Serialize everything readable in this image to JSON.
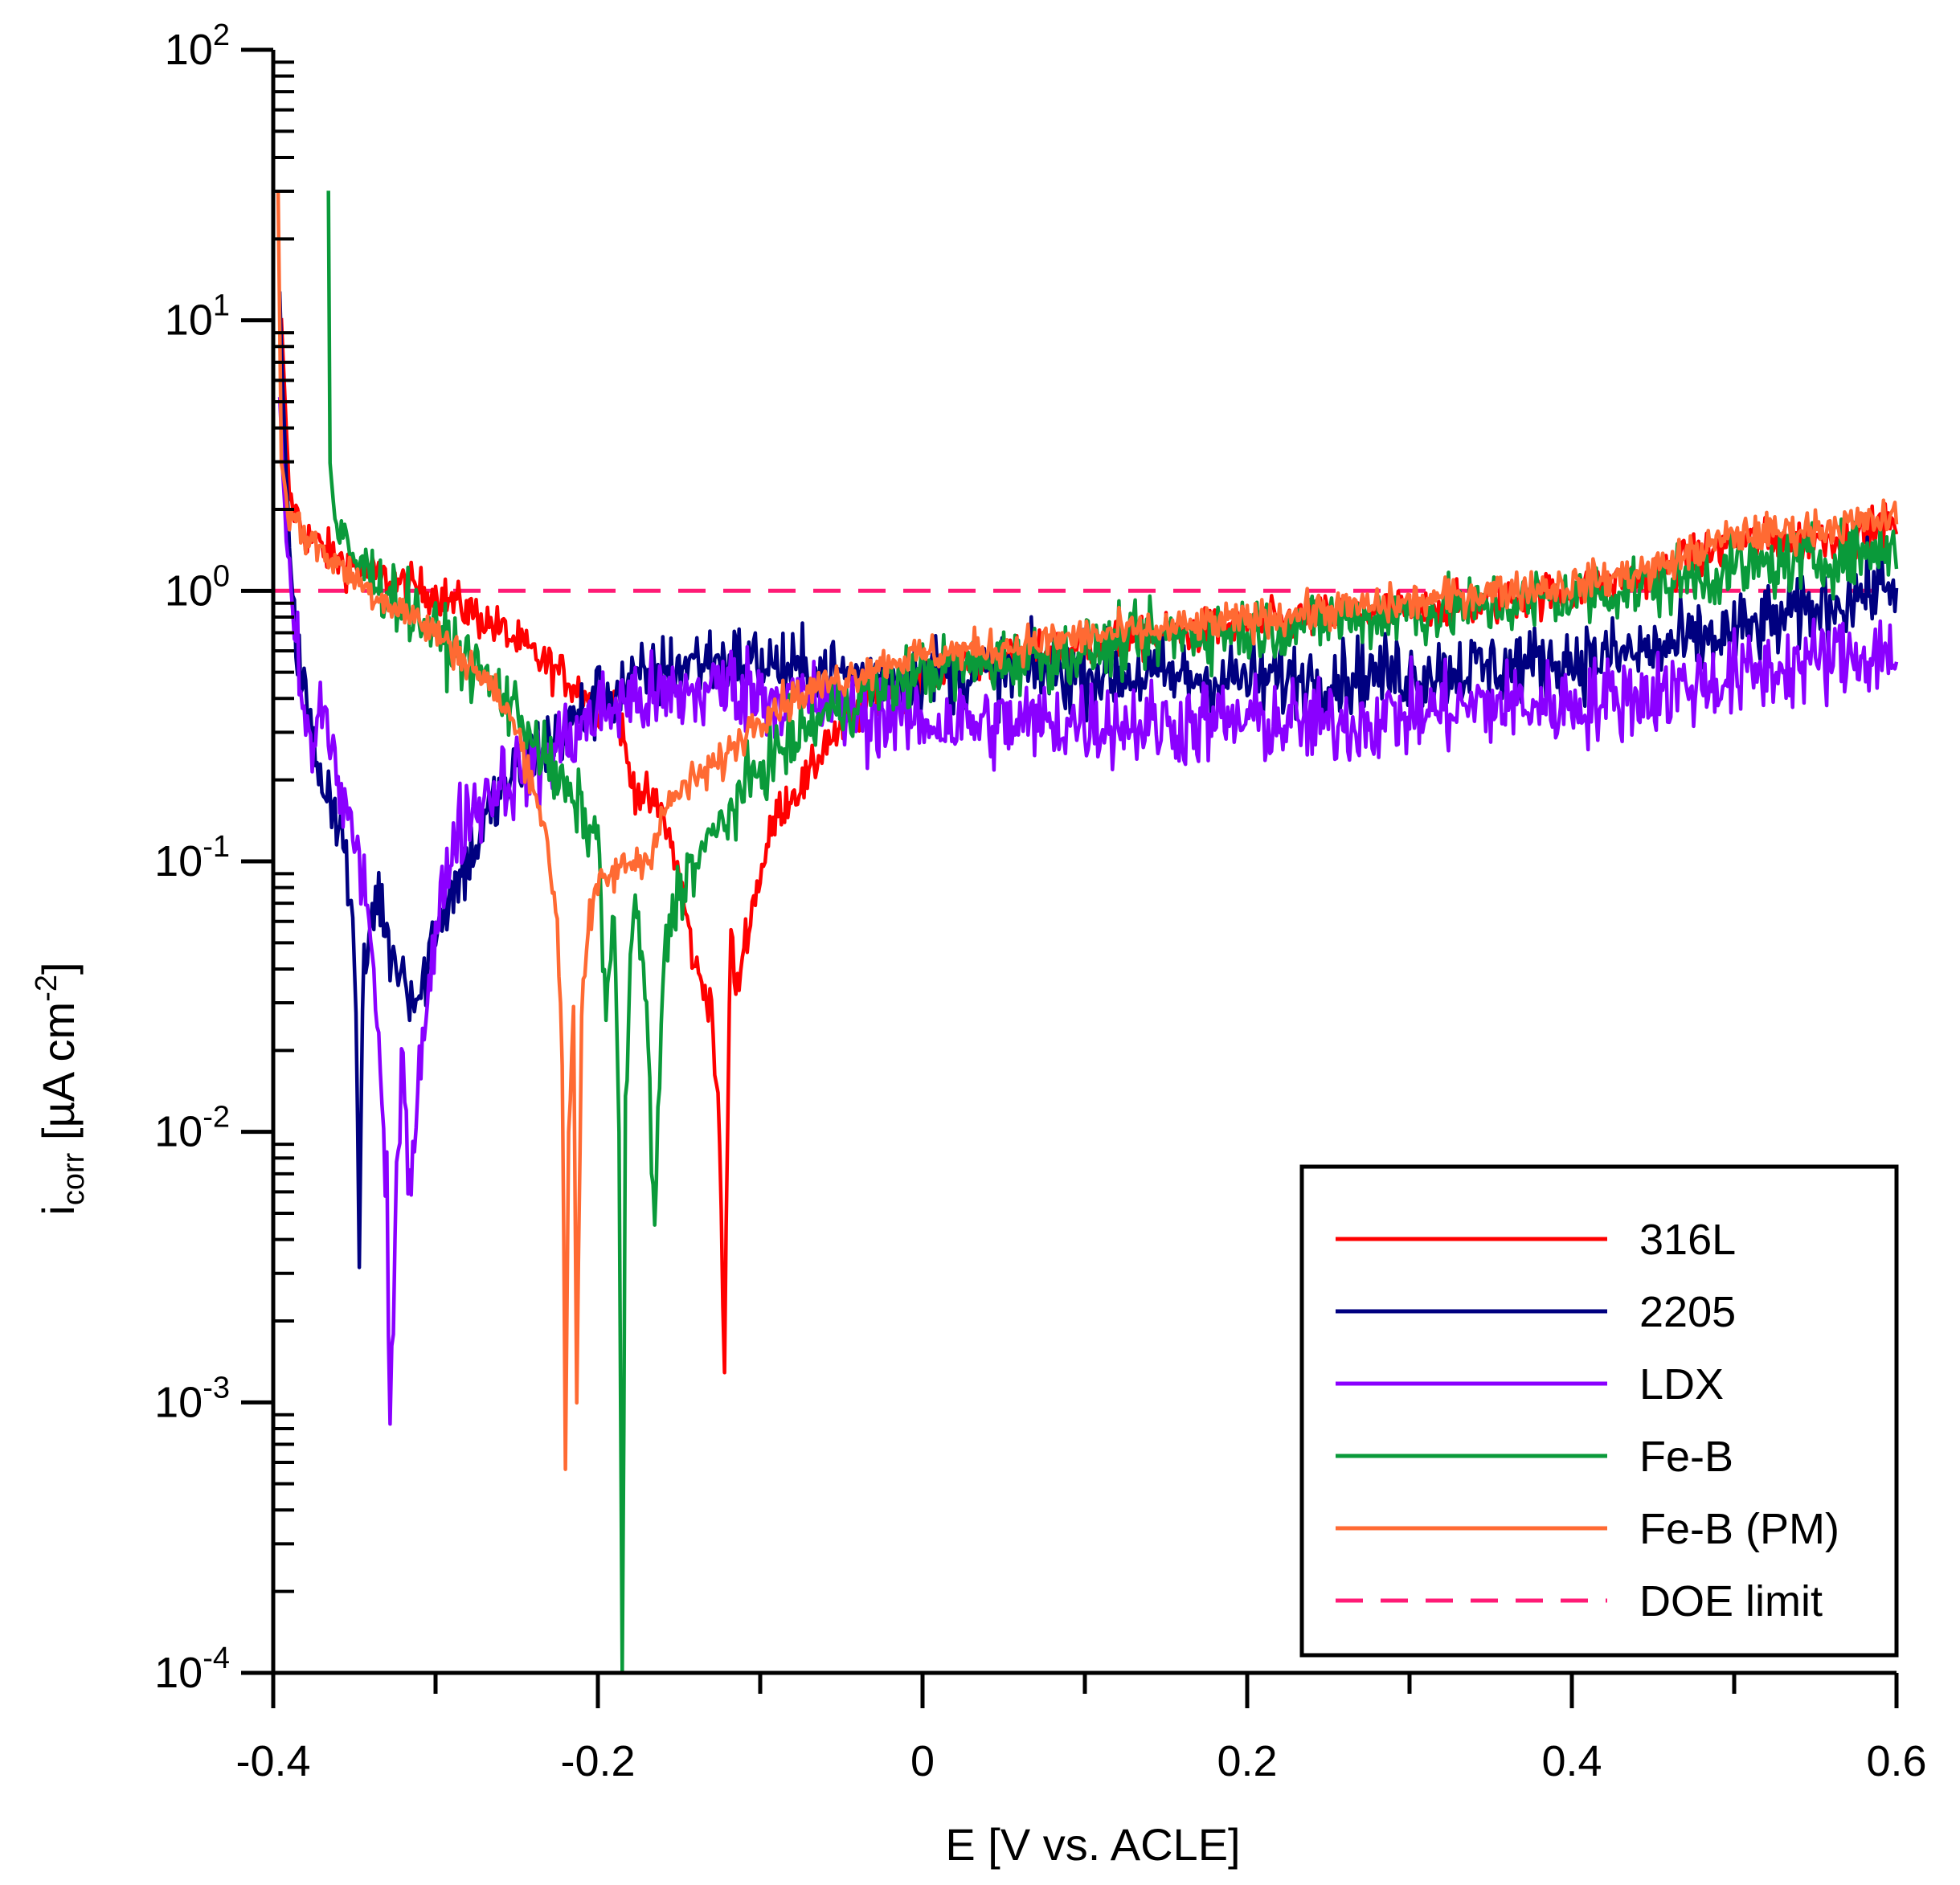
{
  "chart_data": {
    "type": "line",
    "title": "",
    "xlabel": "E [V vs. ACLE]",
    "ylabel": {
      "base": "i",
      "subscript": "corr",
      "unit_prefix": " [µA cm",
      "unit_superscript": "-2",
      "unit_suffix": "]"
    },
    "xlim": [
      -0.4,
      0.6
    ],
    "ylim": [
      0.0001,
      100
    ],
    "yscale": "log",
    "x_ticks": [
      {
        "value": -0.4,
        "label": "-0.4"
      },
      {
        "value": -0.2,
        "label": "-0.2"
      },
      {
        "value": 0,
        "label": "0"
      },
      {
        "value": 0.2,
        "label": "0.2"
      },
      {
        "value": 0.4,
        "label": "0.4"
      },
      {
        "value": 0.6,
        "label": "0.6"
      }
    ],
    "y_ticks": [
      {
        "value": 100,
        "base": "10",
        "exp": "2"
      },
      {
        "value": 10,
        "base": "10",
        "exp": "1"
      },
      {
        "value": 1,
        "base": "10",
        "exp": "0"
      },
      {
        "value": 0.1,
        "base": "10",
        "exp": "-1"
      },
      {
        "value": 0.01,
        "base": "10",
        "exp": "-2"
      },
      {
        "value": 0.001,
        "base": "10",
        "exp": "-3"
      },
      {
        "value": 0.0001,
        "base": "10",
        "exp": "-4"
      }
    ],
    "legend_position": "bottom-right",
    "series": [
      {
        "name": "316L",
        "color": "#ff0000",
        "noise": 0.08,
        "x": [
          -0.395,
          -0.39,
          -0.38,
          -0.36,
          -0.34,
          -0.32,
          -0.3,
          -0.28,
          -0.26,
          -0.24,
          -0.22,
          -0.2,
          -0.19,
          -0.185,
          -0.18,
          -0.17,
          -0.16,
          -0.15,
          -0.14,
          -0.13,
          -0.125,
          -0.122,
          -0.12,
          -0.118,
          -0.115,
          -0.11,
          -0.1,
          -0.09,
          -0.08,
          -0.07,
          -0.06,
          -0.05,
          -0.03,
          -0.01,
          0.0,
          0.05,
          0.1,
          0.15,
          0.2,
          0.25,
          0.3,
          0.35,
          0.4,
          0.45,
          0.5,
          0.55,
          0.6
        ],
        "y": [
          10,
          2.2,
          1.6,
          1.3,
          1.15,
          1.05,
          0.98,
          0.85,
          0.72,
          0.58,
          0.48,
          0.38,
          0.4,
          0.3,
          0.2,
          0.17,
          0.15,
          0.09,
          0.04,
          0.03,
          0.009,
          0.0013,
          0.012,
          0.06,
          0.03,
          0.05,
          0.09,
          0.15,
          0.18,
          0.2,
          0.28,
          0.3,
          0.4,
          0.45,
          0.5,
          0.55,
          0.62,
          0.68,
          0.75,
          0.8,
          0.85,
          0.9,
          1.0,
          1.15,
          1.5,
          1.55,
          1.75
        ]
      },
      {
        "name": "2205",
        "color": "#000080",
        "noise": 0.14,
        "x": [
          -0.396,
          -0.392,
          -0.385,
          -0.375,
          -0.36,
          -0.355,
          -0.35,
          -0.347,
          -0.345,
          -0.34,
          -0.335,
          -0.33,
          -0.32,
          -0.31,
          -0.3,
          -0.28,
          -0.26,
          -0.24,
          -0.22,
          -0.2,
          -0.18,
          -0.16,
          -0.14,
          -0.12,
          -0.1,
          -0.08,
          -0.06,
          -0.04,
          -0.02,
          0.0,
          0.05,
          0.1,
          0.15,
          0.2,
          0.25,
          0.3,
          0.35,
          0.4,
          0.45,
          0.5,
          0.55,
          0.6
        ],
        "y": [
          12,
          2.5,
          0.6,
          0.25,
          0.15,
          0.1,
          0.05,
          0.0035,
          0.03,
          0.06,
          0.08,
          0.05,
          0.04,
          0.03,
          0.06,
          0.1,
          0.18,
          0.25,
          0.3,
          0.4,
          0.45,
          0.5,
          0.55,
          0.55,
          0.55,
          0.5,
          0.5,
          0.48,
          0.48,
          0.5,
          0.5,
          0.5,
          0.48,
          0.47,
          0.48,
          0.5,
          0.52,
          0.55,
          0.6,
          0.7,
          0.85,
          1.1
        ]
      },
      {
        "name": "LDX",
        "color": "#8a00ff",
        "noise": 0.16,
        "x": [
          -0.396,
          -0.392,
          -0.388,
          -0.38,
          -0.375,
          -0.37,
          -0.36,
          -0.355,
          -0.35,
          -0.34,
          -0.335,
          -0.33,
          -0.328,
          -0.325,
          -0.32,
          -0.315,
          -0.31,
          -0.3,
          -0.29,
          -0.28,
          -0.26,
          -0.24,
          -0.22,
          -0.2,
          -0.18,
          -0.16,
          -0.14,
          -0.12,
          -0.1,
          -0.08,
          -0.06,
          -0.04,
          -0.02,
          0.0,
          0.05,
          0.1,
          0.15,
          0.2,
          0.25,
          0.3,
          0.35,
          0.4,
          0.45,
          0.5,
          0.55,
          0.6
        ],
        "y": [
          5,
          1.5,
          0.8,
          0.3,
          0.25,
          0.4,
          0.2,
          0.15,
          0.12,
          0.06,
          0.02,
          0.005,
          0.00075,
          0.004,
          0.02,
          0.006,
          0.02,
          0.05,
          0.12,
          0.15,
          0.2,
          0.22,
          0.28,
          0.35,
          0.4,
          0.4,
          0.42,
          0.45,
          0.42,
          0.4,
          0.38,
          0.35,
          0.35,
          0.33,
          0.32,
          0.33,
          0.32,
          0.33,
          0.32,
          0.35,
          0.38,
          0.38,
          0.42,
          0.48,
          0.55,
          0.6
        ]
      },
      {
        "name": "Fe-B",
        "color": "#0a9a3a",
        "noise": 0.12,
        "x": [
          -0.366,
          -0.365,
          -0.362,
          -0.355,
          -0.34,
          -0.32,
          -0.3,
          -0.28,
          -0.26,
          -0.24,
          -0.23,
          -0.22,
          -0.21,
          -0.2,
          -0.195,
          -0.19,
          -0.187,
          -0.185,
          -0.183,
          -0.18,
          -0.175,
          -0.17,
          -0.167,
          -0.165,
          -0.16,
          -0.155,
          -0.15,
          -0.14,
          -0.13,
          -0.12,
          -0.11,
          -0.1,
          -0.09,
          -0.08,
          -0.06,
          -0.04,
          -0.02,
          0.0,
          0.05,
          0.1,
          0.15,
          0.2,
          0.25,
          0.3,
          0.35,
          0.4,
          0.45,
          0.5,
          0.55,
          0.6
        ],
        "y": [
          30,
          3,
          1.8,
          1.4,
          1.15,
          0.9,
          0.7,
          0.55,
          0.42,
          0.3,
          0.22,
          0.18,
          0.15,
          0.12,
          0.03,
          0.06,
          0.01,
          0.0001,
          0.01,
          0.05,
          0.06,
          0.03,
          0.008,
          0.004,
          0.04,
          0.06,
          0.08,
          0.1,
          0.12,
          0.15,
          0.18,
          0.22,
          0.25,
          0.28,
          0.35,
          0.4,
          0.45,
          0.5,
          0.55,
          0.6,
          0.68,
          0.72,
          0.78,
          0.82,
          0.88,
          0.95,
          1.05,
          1.2,
          1.3,
          1.45
        ]
      },
      {
        "name": "Fe-B (PM)",
        "color": "#ff6a33",
        "noise": 0.07,
        "x": [
          -0.397,
          -0.395,
          -0.39,
          -0.38,
          -0.36,
          -0.34,
          -0.32,
          -0.3,
          -0.28,
          -0.26,
          -0.25,
          -0.24,
          -0.235,
          -0.23,
          -0.225,
          -0.222,
          -0.22,
          -0.218,
          -0.215,
          -0.213,
          -0.21,
          -0.205,
          -0.2,
          -0.19,
          -0.18,
          -0.17,
          -0.16,
          -0.15,
          -0.14,
          -0.13,
          -0.12,
          -0.1,
          -0.08,
          -0.06,
          -0.04,
          -0.02,
          0.0,
          0.05,
          0.1,
          0.15,
          0.2,
          0.25,
          0.3,
          0.35,
          0.4,
          0.45,
          0.5,
          0.55,
          0.6
        ],
        "y": [
          30,
          3,
          1.9,
          1.6,
          1.25,
          1.0,
          0.85,
          0.7,
          0.55,
          0.4,
          0.3,
          0.2,
          0.15,
          0.1,
          0.06,
          0.02,
          0.0006,
          0.01,
          0.03,
          0.001,
          0.03,
          0.06,
          0.08,
          0.09,
          0.1,
          0.1,
          0.15,
          0.18,
          0.2,
          0.22,
          0.25,
          0.35,
          0.4,
          0.45,
          0.5,
          0.55,
          0.58,
          0.62,
          0.68,
          0.72,
          0.78,
          0.85,
          0.9,
          1.0,
          1.05,
          1.2,
          1.6,
          1.7,
          1.85
        ]
      },
      {
        "name": "DOE limit",
        "color": "#ff1a75",
        "dashed": true,
        "x": [
          -0.4,
          0.6
        ],
        "y": [
          1,
          1
        ]
      }
    ]
  }
}
